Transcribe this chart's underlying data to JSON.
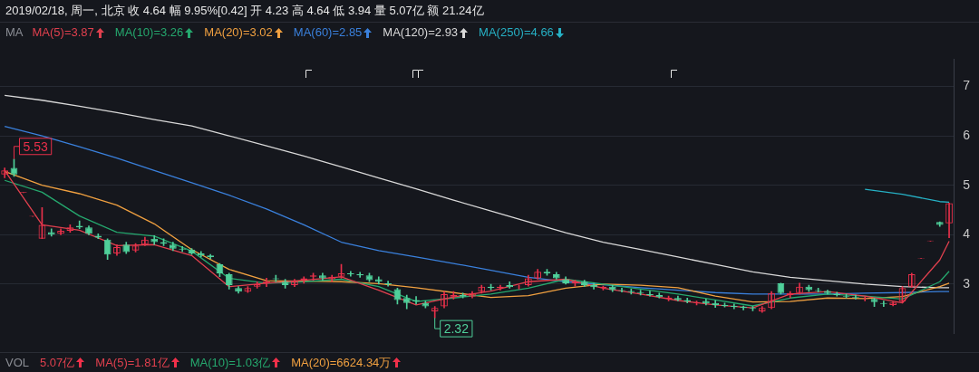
{
  "chart_data": {
    "type": "candlestick",
    "title": "2019/02/18, 周一, 北京 收 4.64 幅 9.95%[0.42] 开 4.23 高 4.64 低 3.94 量 5.07亿 额 21.24亿",
    "legend_title": "MA",
    "legend": "top left",
    "grid": "y",
    "categories": [
      null,
      null,
      null,
      null,
      null,
      null,
      null,
      null,
      null,
      null,
      null,
      null,
      null,
      null,
      null,
      null,
      null,
      null,
      null,
      null,
      null,
      null,
      null,
      null,
      null,
      null,
      null,
      null,
      null,
      null,
      null,
      null,
      null,
      null,
      null,
      null,
      null,
      null,
      null,
      null,
      null,
      null,
      null,
      null,
      null,
      null,
      null,
      null,
      null,
      null,
      null,
      null,
      null,
      null,
      null,
      null,
      null,
      null,
      null,
      null,
      null,
      null,
      null,
      null,
      null,
      null,
      null,
      null,
      null,
      null,
      null,
      null,
      null,
      null,
      null,
      null,
      null,
      null,
      null,
      null,
      null,
      null,
      null,
      null,
      null,
      null,
      null,
      null,
      null,
      null,
      null,
      null,
      null,
      null,
      null,
      null,
      null,
      null,
      null,
      null,
      null,
      null
    ],
    "ohlc": [
      [
        5.22,
        5.35,
        5.15,
        5.3
      ],
      [
        5.35,
        5.53,
        5.18,
        5.22
      ],
      [
        4.85,
        4.85,
        4.85,
        4.85
      ],
      [
        4.37,
        4.37,
        4.37,
        4.37
      ],
      [
        3.92,
        4.55,
        3.92,
        4.2
      ],
      [
        4.05,
        4.12,
        3.97,
        4.0
      ],
      [
        4.02,
        4.12,
        4.0,
        4.08
      ],
      [
        4.08,
        4.2,
        4.05,
        4.15
      ],
      [
        4.18,
        4.28,
        4.12,
        4.15
      ],
      [
        4.15,
        4.18,
        4.0,
        4.02
      ],
      [
        3.98,
        4.02,
        3.92,
        3.94
      ],
      [
        3.9,
        3.92,
        3.5,
        3.6
      ],
      [
        3.62,
        3.8,
        3.58,
        3.75
      ],
      [
        3.8,
        3.85,
        3.62,
        3.65
      ],
      [
        3.68,
        3.82,
        3.65,
        3.78
      ],
      [
        3.8,
        3.95,
        3.78,
        3.9
      ],
      [
        3.92,
        3.98,
        3.8,
        3.85
      ],
      [
        3.85,
        3.92,
        3.78,
        3.82
      ],
      [
        3.8,
        3.85,
        3.68,
        3.72
      ],
      [
        3.72,
        3.76,
        3.66,
        3.7
      ],
      [
        3.7,
        3.72,
        3.6,
        3.62
      ],
      [
        3.62,
        3.66,
        3.55,
        3.58
      ],
      [
        3.58,
        3.6,
        3.52,
        3.55
      ],
      [
        3.4,
        3.42,
        3.15,
        3.22
      ],
      [
        3.2,
        3.22,
        2.9,
        2.98
      ],
      [
        2.92,
        2.95,
        2.82,
        2.85
      ],
      [
        2.85,
        2.95,
        2.83,
        2.92
      ],
      [
        2.95,
        3.05,
        2.92,
        3.0
      ],
      [
        3.02,
        3.12,
        2.95,
        3.06
      ],
      [
        3.12,
        3.18,
        3.05,
        3.1
      ],
      [
        3.05,
        3.1,
        2.92,
        2.98
      ],
      [
        2.98,
        3.1,
        2.95,
        3.06
      ],
      [
        3.08,
        3.15,
        3.02,
        3.12
      ],
      [
        3.15,
        3.22,
        3.08,
        3.18
      ],
      [
        3.18,
        3.22,
        3.08,
        3.12
      ],
      [
        3.1,
        3.18,
        3.05,
        3.15
      ],
      [
        3.15,
        3.4,
        3.12,
        3.22
      ],
      [
        3.22,
        3.26,
        3.16,
        3.2
      ],
      [
        3.2,
        3.24,
        3.14,
        3.18
      ],
      [
        3.18,
        3.22,
        3.05,
        3.08
      ],
      [
        3.1,
        3.15,
        3.0,
        3.05
      ],
      [
        3.02,
        3.06,
        2.96,
        3.0
      ],
      [
        2.9,
        2.92,
        2.6,
        2.68
      ],
      [
        2.72,
        2.78,
        2.5,
        2.62
      ],
      [
        2.68,
        2.75,
        2.6,
        2.65
      ],
      [
        2.62,
        2.66,
        2.52,
        2.55
      ],
      [
        2.45,
        2.55,
        2.32,
        2.52
      ],
      [
        2.55,
        2.85,
        2.52,
        2.8
      ],
      [
        2.75,
        2.85,
        2.7,
        2.78
      ],
      [
        2.78,
        2.82,
        2.72,
        2.75
      ],
      [
        2.75,
        2.85,
        2.72,
        2.82
      ],
      [
        2.85,
        2.98,
        2.82,
        2.95
      ],
      [
        2.95,
        3.0,
        2.88,
        2.92
      ],
      [
        2.92,
        2.98,
        2.88,
        2.95
      ],
      [
        2.98,
        3.05,
        2.92,
        2.94
      ],
      [
        2.94,
        2.98,
        2.9,
        2.95
      ],
      [
        2.98,
        3.18,
        2.96,
        3.12
      ],
      [
        3.12,
        3.3,
        3.1,
        3.25
      ],
      [
        3.25,
        3.3,
        3.18,
        3.22
      ],
      [
        3.2,
        3.24,
        3.1,
        3.12
      ],
      [
        3.1,
        3.15,
        3.0,
        3.02
      ],
      [
        3.02,
        3.08,
        2.96,
        3.05
      ],
      [
        3.05,
        3.08,
        2.95,
        2.98
      ],
      [
        2.98,
        3.02,
        2.9,
        2.94
      ],
      [
        2.92,
        2.96,
        2.88,
        2.95
      ],
      [
        2.95,
        2.98,
        2.85,
        2.88
      ],
      [
        2.88,
        2.92,
        2.84,
        2.86
      ],
      [
        2.86,
        2.9,
        2.8,
        2.84
      ],
      [
        2.84,
        2.88,
        2.78,
        2.82
      ],
      [
        2.8,
        2.86,
        2.76,
        2.78
      ],
      [
        2.78,
        2.82,
        2.72,
        2.74
      ],
      [
        2.7,
        2.76,
        2.66,
        2.73
      ],
      [
        2.72,
        2.76,
        2.66,
        2.68
      ],
      [
        2.68,
        2.72,
        2.62,
        2.65
      ],
      [
        2.62,
        2.66,
        2.58,
        2.64
      ],
      [
        2.66,
        2.7,
        2.58,
        2.61
      ],
      [
        2.62,
        2.67,
        2.53,
        2.58
      ],
      [
        2.58,
        2.62,
        2.54,
        2.56
      ],
      [
        2.56,
        2.6,
        2.5,
        2.54
      ],
      [
        2.54,
        2.56,
        2.48,
        2.52
      ],
      [
        2.52,
        2.55,
        2.46,
        2.5
      ],
      [
        2.45,
        2.55,
        2.43,
        2.52
      ],
      [
        2.52,
        2.85,
        2.5,
        2.82
      ],
      [
        3.02,
        3.02,
        2.8,
        2.82
      ],
      [
        2.78,
        2.85,
        2.72,
        2.82
      ],
      [
        2.82,
        3.02,
        2.8,
        2.95
      ],
      [
        2.95,
        2.98,
        2.85,
        2.88
      ],
      [
        2.88,
        2.92,
        2.84,
        2.86
      ],
      [
        2.86,
        2.88,
        2.8,
        2.82
      ],
      [
        2.8,
        2.84,
        2.76,
        2.78
      ],
      [
        2.76,
        2.8,
        2.72,
        2.75
      ],
      [
        2.74,
        2.78,
        2.7,
        2.72
      ],
      [
        2.7,
        2.74,
        2.66,
        2.71
      ],
      [
        2.7,
        2.72,
        2.55,
        2.64
      ],
      [
        2.62,
        2.66,
        2.55,
        2.6
      ],
      [
        2.58,
        2.64,
        2.56,
        2.63
      ],
      [
        2.65,
        2.95,
        2.63,
        2.92
      ],
      [
        2.95,
        3.22,
        2.93,
        3.2
      ],
      [
        3.52,
        3.52,
        3.52,
        3.52
      ],
      [
        3.87,
        3.87,
        3.87,
        3.87
      ],
      [
        4.26,
        4.26,
        4.17,
        4.2
      ],
      [
        4.23,
        4.64,
        3.94,
        4.64
      ]
    ],
    "series": [
      {
        "type": "line",
        "name": "MA(5)=3.87",
        "color": "#e0404e",
        "values": [
          5.3,
          null,
          null,
          null,
          4.2,
          null,
          null,
          null,
          4.09,
          null,
          null,
          null,
          3.78,
          null,
          null,
          null,
          3.8,
          null,
          null,
          null,
          3.58,
          null,
          null,
          null,
          2.95,
          null,
          null,
          null,
          3.02,
          null,
          null,
          null,
          3.08,
          null,
          null,
          null,
          3.15,
          null,
          null,
          null,
          2.88,
          null,
          null,
          null,
          2.58,
          null,
          null,
          null,
          2.74,
          null,
          null,
          null,
          2.86,
          null,
          null,
          null,
          3.05,
          null,
          null,
          null,
          3.1,
          null,
          null,
          null,
          2.92,
          null,
          null,
          null,
          2.8,
          null,
          null,
          null,
          2.67,
          null,
          null,
          null,
          2.58,
          null,
          null,
          null,
          2.52,
          null,
          null,
          null,
          2.8,
          null,
          null,
          null,
          2.85,
          null,
          null,
          null,
          2.76,
          null,
          null,
          null,
          2.62,
          null,
          null,
          null,
          3.49,
          3.87
        ]
      },
      {
        "type": "line",
        "name": "MA(10)=3.26",
        "color": "#25a86e",
        "values": [
          5.1,
          null,
          null,
          null,
          4.86,
          null,
          null,
          null,
          4.38,
          null,
          null,
          null,
          4.05,
          null,
          null,
          null,
          3.97,
          null,
          null,
          null,
          3.67,
          null,
          null,
          null,
          3.12,
          null,
          null,
          null,
          3.02,
          null,
          null,
          null,
          3.05,
          null,
          null,
          null,
          3.1,
          null,
          null,
          null,
          2.95,
          null,
          null,
          null,
          2.65,
          null,
          null,
          null,
          2.72,
          null,
          null,
          null,
          2.8,
          null,
          null,
          null,
          2.92,
          null,
          null,
          null,
          3.1,
          null,
          null,
          null,
          3.0,
          null,
          null,
          null,
          2.9,
          null,
          null,
          null,
          2.8,
          null,
          null,
          null,
          2.68,
          null,
          null,
          null,
          2.56,
          null,
          null,
          null,
          2.72,
          null,
          null,
          null,
          2.8,
          null,
          null,
          null,
          2.76,
          null,
          null,
          null,
          2.7,
          null,
          null,
          null,
          3.05,
          3.26
        ]
      },
      {
        "type": "line",
        "name": "MA(20)=3.02",
        "color": "#f0a040",
        "values": [
          5.28,
          null,
          null,
          null,
          5.0,
          null,
          null,
          null,
          4.83,
          null,
          null,
          null,
          4.6,
          null,
          null,
          null,
          4.22,
          null,
          null,
          null,
          3.7,
          null,
          null,
          null,
          3.3,
          null,
          null,
          null,
          3.07,
          null,
          null,
          null,
          3.06,
          null,
          null,
          null,
          3.05,
          null,
          null,
          null,
          3.01,
          null,
          null,
          null,
          2.93,
          null,
          null,
          null,
          2.83,
          null,
          null,
          null,
          2.73,
          null,
          null,
          null,
          2.77,
          null,
          null,
          null,
          2.92,
          null,
          null,
          null,
          3.0,
          null,
          null,
          null,
          2.98,
          null,
          null,
          null,
          2.93,
          null,
          null,
          null,
          2.76,
          null,
          null,
          null,
          2.64,
          null,
          null,
          null,
          2.65,
          null,
          null,
          null,
          2.72,
          null,
          null,
          null,
          2.71,
          null,
          null,
          null,
          2.75,
          null,
          null,
          null,
          2.95,
          3.02
        ]
      },
      {
        "type": "line",
        "name": "MA(60)=2.85",
        "color": "#3a80dc",
        "values": [
          6.19,
          null,
          null,
          null,
          6.0,
          null,
          null,
          null,
          5.78,
          null,
          null,
          null,
          5.55,
          null,
          null,
          null,
          5.3,
          null,
          null,
          null,
          5.05,
          null,
          null,
          null,
          4.8,
          null,
          null,
          null,
          4.52,
          null,
          null,
          null,
          4.2,
          null,
          null,
          null,
          3.85,
          null,
          null,
          null,
          3.68,
          null,
          null,
          null,
          3.55,
          null,
          null,
          null,
          3.42,
          null,
          null,
          null,
          3.28,
          null,
          null,
          null,
          3.14,
          null,
          null,
          null,
          3.05,
          null,
          null,
          null,
          2.99,
          null,
          null,
          null,
          2.93,
          null,
          null,
          null,
          2.88,
          null,
          null,
          null,
          2.83,
          null,
          null,
          null,
          2.8,
          null,
          null,
          null,
          2.8,
          null,
          null,
          null,
          2.8,
          null,
          null,
          null,
          2.82,
          null,
          null,
          null,
          2.83,
          null,
          null,
          null,
          2.85,
          2.85
        ]
      },
      {
        "type": "line",
        "name": "MA(120)=2.93",
        "color": "#d8d8d8",
        "values": [
          6.82,
          null,
          null,
          null,
          6.72,
          null,
          null,
          null,
          6.6,
          null,
          null,
          null,
          6.47,
          null,
          null,
          null,
          6.33,
          null,
          null,
          null,
          6.2,
          null,
          null,
          null,
          6.0,
          null,
          null,
          null,
          5.8,
          null,
          null,
          null,
          5.59,
          null,
          null,
          null,
          5.37,
          null,
          null,
          null,
          5.15,
          null,
          null,
          null,
          4.93,
          null,
          null,
          null,
          4.7,
          null,
          null,
          null,
          4.48,
          null,
          null,
          null,
          4.26,
          null,
          null,
          null,
          4.04,
          null,
          null,
          null,
          3.85,
          null,
          null,
          null,
          3.7,
          null,
          null,
          null,
          3.55,
          null,
          null,
          null,
          3.4,
          null,
          null,
          null,
          3.25,
          null,
          null,
          null,
          3.14,
          null,
          null,
          null,
          3.07,
          null,
          null,
          null,
          3.0,
          null,
          null,
          null,
          2.95,
          null,
          null,
          null,
          2.93,
          2.93
        ]
      },
      {
        "type": "line",
        "name": "MA(250)=4.66",
        "color": "#26b0c4",
        "values": [
          null,
          null,
          null,
          null,
          null,
          null,
          null,
          null,
          null,
          null,
          null,
          null,
          null,
          null,
          null,
          null,
          null,
          null,
          null,
          null,
          null,
          null,
          null,
          null,
          null,
          null,
          null,
          null,
          null,
          null,
          null,
          null,
          null,
          null,
          null,
          null,
          null,
          null,
          null,
          null,
          null,
          null,
          null,
          null,
          null,
          null,
          null,
          null,
          null,
          null,
          null,
          null,
          null,
          null,
          null,
          null,
          null,
          null,
          null,
          null,
          null,
          null,
          null,
          null,
          null,
          null,
          null,
          null,
          null,
          null,
          null,
          null,
          null,
          null,
          null,
          null,
          null,
          null,
          null,
          null,
          null,
          null,
          null,
          null,
          null,
          null,
          null,
          null,
          null,
          null,
          null,
          null,
          4.92,
          null,
          null,
          null,
          4.82,
          null,
          null,
          null,
          4.67,
          4.66
        ]
      }
    ],
    "ylim": [
      2.0,
      7.55
    ],
    "yticks": [
      3,
      4,
      5,
      6,
      7
    ],
    "annotations": [
      "5.53",
      "2.32",
      "VOL",
      "5.07亿",
      "MA(5)=1.81亿",
      "MA(10)=1.03亿",
      "MA(20)=6624.34万"
    ]
  }
}
